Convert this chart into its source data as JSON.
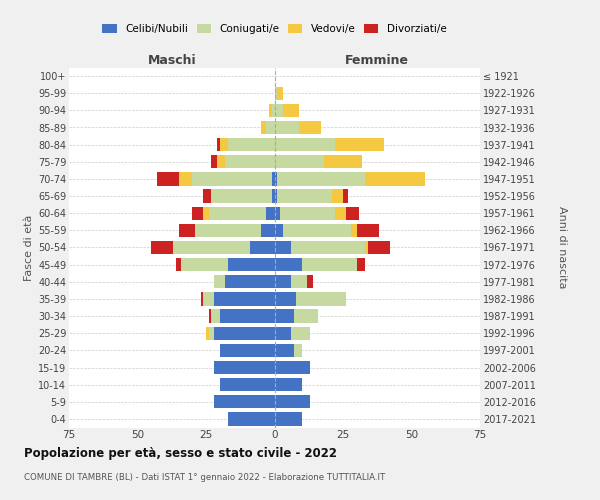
{
  "age_groups": [
    "100+",
    "95-99",
    "90-94",
    "85-89",
    "80-84",
    "75-79",
    "70-74",
    "65-69",
    "60-64",
    "55-59",
    "50-54",
    "45-49",
    "40-44",
    "35-39",
    "30-34",
    "25-29",
    "20-24",
    "15-19",
    "10-14",
    "5-9",
    "0-4"
  ],
  "birth_years": [
    "≤ 1921",
    "1922-1926",
    "1927-1931",
    "1932-1936",
    "1937-1941",
    "1942-1946",
    "1947-1951",
    "1952-1956",
    "1957-1961",
    "1962-1966",
    "1967-1971",
    "1972-1976",
    "1977-1981",
    "1982-1986",
    "1987-1991",
    "1992-1996",
    "1997-2001",
    "2002-2006",
    "2007-2011",
    "2012-2016",
    "2017-2021"
  ],
  "male_celibi": [
    0,
    0,
    0,
    0,
    0,
    0,
    1,
    1,
    3,
    5,
    9,
    17,
    18,
    22,
    20,
    22,
    20,
    22,
    20,
    22,
    17
  ],
  "male_coniugati": [
    0,
    0,
    1,
    3,
    17,
    18,
    29,
    22,
    21,
    24,
    28,
    17,
    4,
    4,
    3,
    2,
    0,
    0,
    0,
    0,
    0
  ],
  "male_vedovi": [
    0,
    0,
    1,
    2,
    3,
    3,
    5,
    0,
    2,
    0,
    0,
    0,
    0,
    0,
    0,
    1,
    0,
    0,
    0,
    0,
    0
  ],
  "male_divorziati": [
    0,
    0,
    0,
    0,
    1,
    2,
    8,
    3,
    4,
    6,
    8,
    2,
    0,
    1,
    1,
    0,
    0,
    0,
    0,
    0,
    0
  ],
  "fem_nubili": [
    0,
    0,
    0,
    0,
    0,
    0,
    1,
    1,
    2,
    3,
    6,
    10,
    6,
    8,
    7,
    6,
    7,
    13,
    10,
    13,
    10
  ],
  "fem_coniugate": [
    0,
    1,
    3,
    9,
    22,
    18,
    32,
    20,
    20,
    25,
    27,
    20,
    6,
    18,
    9,
    7,
    3,
    0,
    0,
    0,
    0
  ],
  "fem_vedove": [
    0,
    2,
    6,
    8,
    18,
    14,
    22,
    4,
    4,
    2,
    1,
    0,
    0,
    0,
    0,
    0,
    0,
    0,
    0,
    0,
    0
  ],
  "fem_divorziate": [
    0,
    0,
    0,
    0,
    0,
    0,
    0,
    2,
    5,
    8,
    8,
    3,
    2,
    0,
    0,
    0,
    0,
    0,
    0,
    0,
    0
  ],
  "color_celibi": "#4472c4",
  "color_coniugati": "#c5d9a0",
  "color_vedovi": "#f5c842",
  "color_divorziati": "#cc2222",
  "title": "Popolazione per età, sesso e stato civile - 2022",
  "subtitle": "COMUNE DI TAMBRE (BL) - Dati ISTAT 1° gennaio 2022 - Elaborazione TUTTITALIA.IT",
  "label_maschi": "Maschi",
  "label_femmine": "Femmine",
  "ylabel_left": "Fasce di età",
  "ylabel_right": "Anni di nascita",
  "legend_labels": [
    "Celibi/Nubili",
    "Coniugati/e",
    "Vedovi/e",
    "Divorziati/e"
  ],
  "xlim": 75,
  "bg_color": "#f0f0f0",
  "plot_bg": "#ffffff"
}
